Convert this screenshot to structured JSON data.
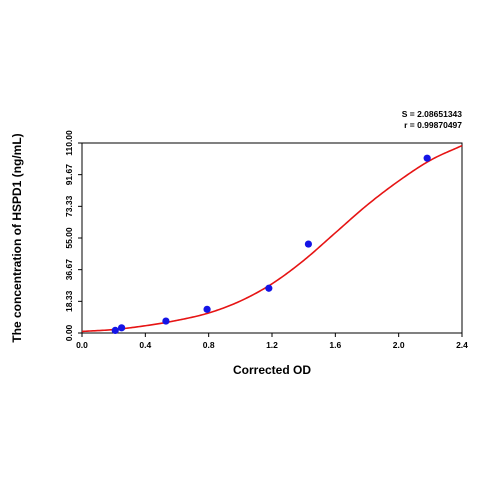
{
  "chart_data": {
    "type": "scatter",
    "xlabel": "Corrected OD",
    "ylabel": "The concentration of HSPD1 (ng/mL)",
    "xlim": [
      0,
      2.4
    ],
    "ylim": [
      0,
      110
    ],
    "x_ticks": [
      "0.0",
      "0.4",
      "0.8",
      "1.2",
      "1.6",
      "2.0",
      "2.4"
    ],
    "y_ticks": [
      "0.00",
      "18.33",
      "36.67",
      "55.00",
      "73.33",
      "91.67",
      "110.00"
    ],
    "stats": [
      "S = 2.08651343",
      "r = 0.99870497"
    ],
    "grid": false,
    "points": {
      "x": [
        0.21,
        0.25,
        0.53,
        0.79,
        1.18,
        1.43,
        2.18
      ],
      "y": [
        1.5,
        3.0,
        6.9,
        13.7,
        25.9,
        51.5,
        101.2
      ]
    },
    "fit_curve": {
      "x": [
        0.0,
        0.2,
        0.4,
        0.6,
        0.8,
        1.0,
        1.2,
        1.4,
        1.6,
        1.8,
        2.0,
        2.2,
        2.4
      ],
      "y": [
        0.9,
        2.0,
        4.2,
        7.3,
        11.6,
        18.5,
        28.5,
        42.0,
        58.0,
        74.0,
        88.0,
        100.0,
        108.5
      ]
    },
    "colors": {
      "points": "#1414e6",
      "curve": "#e61414",
      "axes": "#000000"
    }
  }
}
